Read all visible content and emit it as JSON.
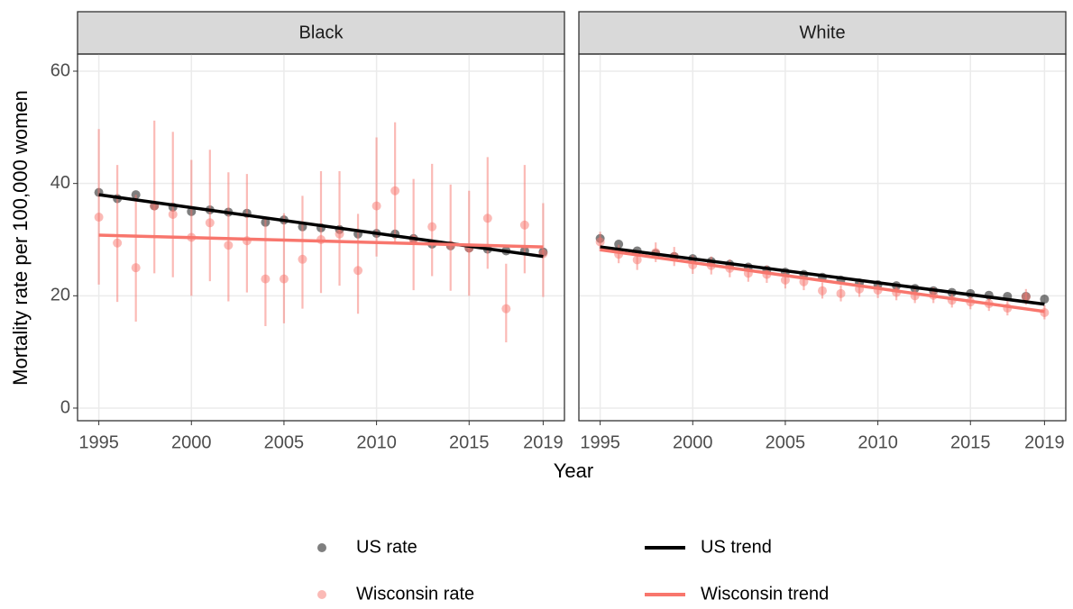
{
  "chart_data": [
    {
      "type": "scatter",
      "title": "Black",
      "x_label": "Year",
      "y_label": "Mortality rate per 100,000 women",
      "xlim": [
        1993.85,
        2020.15
      ],
      "ylim": [
        -2.25,
        63.05
      ],
      "xticks": [
        1995,
        2000,
        2005,
        2010,
        2015,
        2019
      ],
      "yticks": [
        0,
        20,
        40,
        60
      ],
      "grid": true,
      "x": [
        1995,
        1996,
        1997,
        1998,
        1999,
        2000,
        2001,
        2002,
        2003,
        2004,
        2005,
        2006,
        2007,
        2008,
        2009,
        2010,
        2011,
        2012,
        2013,
        2014,
        2015,
        2016,
        2017,
        2018,
        2019
      ],
      "series": [
        {
          "name": "US rate",
          "mode": "point",
          "color": "#000000",
          "values": [
            38.4,
            37.3,
            38.0,
            36.0,
            35.8,
            35.0,
            35.3,
            34.9,
            34.7,
            33.1,
            33.5,
            32.3,
            32.1,
            31.8,
            31.0,
            31.1,
            31.0,
            30.2,
            29.2,
            28.9,
            28.5,
            28.3,
            28.0,
            28.0,
            27.8
          ]
        },
        {
          "name": "Wisconsin rate",
          "mode": "point",
          "color": "#F8766D",
          "values": [
            34.0,
            29.4,
            25.0,
            36.0,
            34.5,
            30.4,
            33.0,
            29.0,
            29.8,
            23.0,
            23.0,
            26.5,
            30.0,
            31.0,
            24.5,
            36.0,
            38.7,
            30.0,
            32.3,
            29.0,
            28.5,
            33.8,
            17.7,
            32.6,
            27.5
          ],
          "lower": [
            22.0,
            18.9,
            15.4,
            24.0,
            23.3,
            20.0,
            22.6,
            19.0,
            20.6,
            14.6,
            15.1,
            17.7,
            20.5,
            21.8,
            16.8,
            27.0,
            29.5,
            21.0,
            23.5,
            20.9,
            20.0,
            24.8,
            11.7,
            24.0,
            19.8
          ],
          "upper": [
            49.7,
            43.3,
            38.0,
            51.2,
            49.2,
            44.2,
            46.0,
            42.0,
            41.7,
            34.1,
            34.7,
            37.8,
            42.2,
            42.2,
            34.6,
            48.2,
            50.9,
            40.8,
            43.5,
            39.8,
            38.7,
            44.7,
            25.7,
            43.3,
            36.5
          ]
        },
        {
          "name": "US trend",
          "mode": "line",
          "color": "#000000",
          "x": [
            1995,
            2019
          ],
          "values": [
            38.0,
            27.0
          ]
        },
        {
          "name": "Wisconsin trend",
          "mode": "line",
          "color": "#F8766D",
          "x": [
            1995,
            2019
          ],
          "values": [
            30.8,
            28.7
          ]
        }
      ]
    },
    {
      "type": "scatter",
      "title": "White",
      "xlim": [
        1993.85,
        2020.15
      ],
      "ylim": [
        -2.25,
        63.05
      ],
      "xticks": [
        1995,
        2000,
        2005,
        2010,
        2015,
        2019
      ],
      "yticks": [
        0,
        20,
        40,
        60
      ],
      "grid": true,
      "x": [
        1995,
        1996,
        1997,
        1998,
        1999,
        2000,
        2001,
        2002,
        2003,
        2004,
        2005,
        2006,
        2007,
        2008,
        2009,
        2010,
        2011,
        2012,
        2013,
        2014,
        2015,
        2016,
        2017,
        2018,
        2019
      ],
      "series": [
        {
          "mode": "point",
          "color": "#000000",
          "values": [
            30.2,
            29.2,
            28.0,
            27.5,
            27.0,
            26.6,
            26.1,
            25.6,
            25.1,
            24.6,
            24.2,
            23.8,
            23.3,
            22.8,
            22.3,
            22.0,
            21.8,
            21.3,
            20.9,
            20.6,
            20.4,
            20.1,
            19.9,
            19.9,
            19.4
          ]
        },
        {
          "mode": "point",
          "color": "#F8766D",
          "values": [
            29.6,
            27.4,
            26.4,
            27.7,
            27.0,
            25.5,
            25.4,
            24.9,
            24.0,
            23.8,
            22.8,
            22.5,
            20.9,
            20.4,
            21.2,
            21.0,
            20.6,
            20.0,
            20.1,
            19.2,
            18.9,
            18.6,
            17.8,
            19.8,
            17.0
          ],
          "lower": [
            27.9,
            25.8,
            24.6,
            26.0,
            25.3,
            23.9,
            23.8,
            23.3,
            22.5,
            22.3,
            21.3,
            21.0,
            19.5,
            19.0,
            19.8,
            19.6,
            19.2,
            18.7,
            18.7,
            17.9,
            17.6,
            17.3,
            16.5,
            18.4,
            15.8
          ],
          "upper": [
            31.4,
            29.1,
            28.1,
            29.5,
            28.7,
            27.2,
            27.0,
            26.5,
            25.7,
            25.4,
            24.3,
            24.0,
            22.4,
            21.9,
            22.6,
            22.4,
            22.0,
            21.4,
            21.5,
            20.6,
            20.3,
            20.0,
            19.1,
            21.2,
            18.3
          ]
        },
        {
          "mode": "line",
          "color": "#000000",
          "x": [
            1995,
            2019
          ],
          "values": [
            28.7,
            18.5
          ]
        },
        {
          "mode": "line",
          "color": "#F8766D",
          "x": [
            1995,
            2019
          ],
          "values": [
            28.2,
            17.2
          ]
        }
      ]
    }
  ]
}
